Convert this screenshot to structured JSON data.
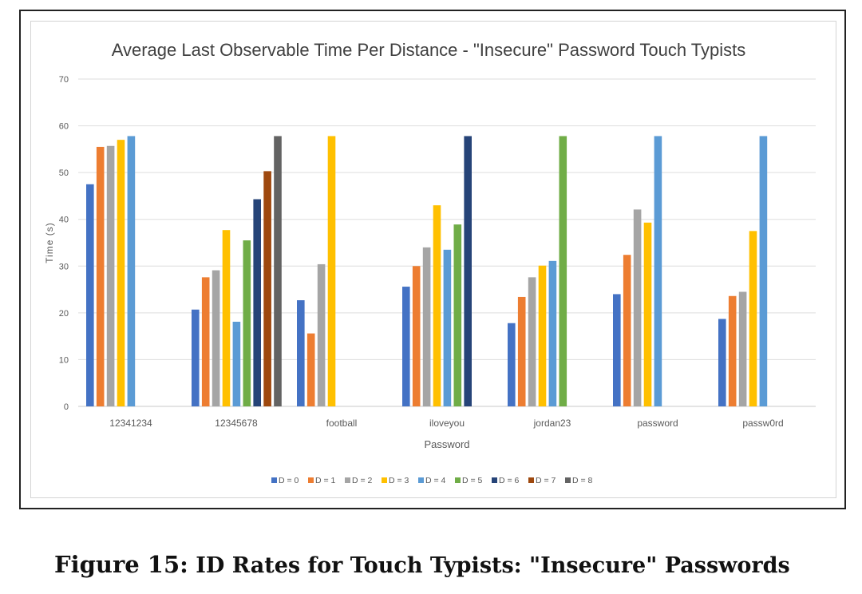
{
  "chart_data": {
    "type": "bar",
    "title": "Average Last Observable Time Per Distance - \"Insecure\" Password Touch Typists",
    "xlabel": "Password",
    "ylabel": "Time (s)",
    "ylim": [
      0,
      70
    ],
    "yticks": [
      0,
      10,
      20,
      30,
      40,
      50,
      60,
      70
    ],
    "grid": true,
    "legend_position": "bottom",
    "categories": [
      "12341234",
      "12345678",
      "football",
      "iloveyou",
      "jordan23",
      "password",
      "passw0rd"
    ],
    "series": [
      {
        "name": "D = 0",
        "color": "#4472c4",
        "values": [
          47.5,
          20.7,
          22.7,
          25.6,
          17.8,
          24.0,
          18.7
        ]
      },
      {
        "name": "D = 1",
        "color": "#ed7d31",
        "values": [
          55.5,
          27.6,
          15.6,
          30.0,
          23.4,
          32.4,
          23.6
        ]
      },
      {
        "name": "D = 2",
        "color": "#a5a5a5",
        "values": [
          55.7,
          29.1,
          30.4,
          34.0,
          27.6,
          42.1,
          24.5
        ]
      },
      {
        "name": "D = 3",
        "color": "#ffc000",
        "values": [
          57.0,
          37.7,
          57.8,
          43.0,
          30.1,
          39.3,
          37.5
        ]
      },
      {
        "name": "D = 4",
        "color": "#5b9bd5",
        "values": [
          57.8,
          18.1,
          null,
          33.5,
          31.1,
          57.8,
          57.8
        ]
      },
      {
        "name": "D = 5",
        "color": "#70ad47",
        "values": [
          null,
          35.5,
          null,
          38.9,
          57.8,
          null,
          null
        ]
      },
      {
        "name": "D = 6",
        "color": "#264478",
        "values": [
          null,
          44.3,
          null,
          57.8,
          null,
          null,
          null
        ]
      },
      {
        "name": "D = 7",
        "color": "#9e480e",
        "values": [
          null,
          50.3,
          null,
          null,
          null,
          null,
          null
        ]
      },
      {
        "name": "D = 8",
        "color": "#636363",
        "values": [
          null,
          57.8,
          null,
          null,
          null,
          null,
          null
        ]
      }
    ]
  },
  "caption": {
    "label": "Figure 15:",
    "text": "ID Rates for Touch Typists: \"Insecure\" Passwords"
  }
}
